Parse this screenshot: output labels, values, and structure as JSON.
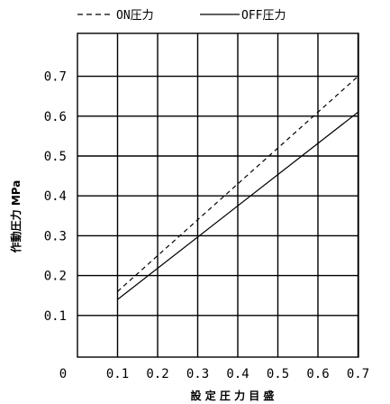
{
  "chart_data": {
    "type": "line",
    "title": "",
    "xlabel": "設 定 圧 力 目 盛",
    "ylabel": "作動圧力 MPa",
    "origin_label": "0",
    "x_ticks": [
      "0.1",
      "0.2",
      "0.3",
      "0.4",
      "0.5",
      "0.6",
      "0.7"
    ],
    "y_ticks": [
      "0.1",
      "0.2",
      "0.3",
      "0.4",
      "0.5",
      "0.6",
      "0.7"
    ],
    "xlim": [
      0,
      0.7
    ],
    "ylim": [
      0,
      0.8
    ],
    "grid": true,
    "legend_position": "top",
    "series": [
      {
        "name": "ON圧力",
        "style": "dashed",
        "x": [
          0.1,
          0.7
        ],
        "y": [
          0.16,
          0.7
        ]
      },
      {
        "name": "OFF圧力",
        "style": "solid",
        "x": [
          0.1,
          0.7
        ],
        "y": [
          0.14,
          0.61
        ]
      }
    ]
  }
}
